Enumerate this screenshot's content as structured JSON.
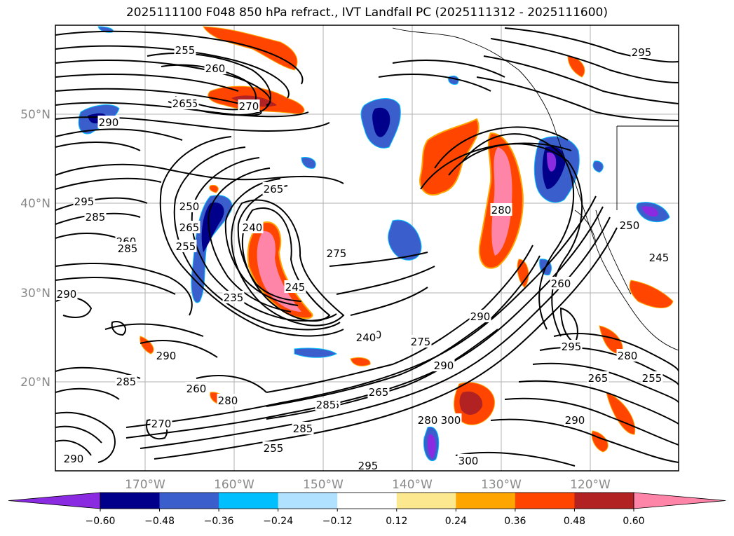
{
  "title": "2025111100 F048 850 hPa refract., IVT Landfall PC (2025111312 - 2025111600)",
  "map": {
    "lat_labels": [
      "50°N",
      "40°N",
      "30°N",
      "20°N"
    ],
    "lon_labels": [
      "170°W",
      "160°W",
      "150°W",
      "140°W",
      "130°W",
      "120°W"
    ],
    "contour_labels": [
      "255",
      "260",
      "265",
      "270",
      "290",
      "295",
      "285",
      "260",
      "250",
      "265",
      "255",
      "275",
      "280",
      "290",
      "290",
      "290",
      "285",
      "260",
      "280",
      "255",
      "240",
      "275",
      "290",
      "290",
      "295",
      "290",
      "280",
      "280",
      "285",
      "290",
      "265",
      "240",
      "270",
      "265",
      "235",
      "245",
      "285",
      "300",
      "300",
      "295",
      "260",
      "255",
      "265",
      "255",
      "295",
      "250",
      "245",
      "265",
      "285"
    ],
    "colors": {
      "neg_060": "#8a2be2",
      "neg_048": "#00008b",
      "neg_036": "#3a5fcd",
      "neg_024": "#00bfff",
      "neg_012": "#b0e2ff",
      "zero": "#ffffff",
      "pos_012": "#fce98f",
      "pos_024": "#ffa500",
      "pos_036": "#ff4500",
      "pos_048": "#b22222",
      "pos_060": "#ff85a8"
    }
  },
  "colorbar": {
    "tick_labels": [
      "−0.60",
      "−0.48",
      "−0.36",
      "−0.24",
      "−0.12",
      "0.12",
      "0.24",
      "0.36",
      "0.48",
      "0.60"
    ],
    "colors": [
      "#8a2be2",
      "#00008b",
      "#3a5fcd",
      "#00bfff",
      "#b0e2ff",
      "#ffffff",
      "#fce98f",
      "#ffa500",
      "#ff4500",
      "#b22222",
      "#ff85a8",
      "#ff85a8"
    ]
  }
}
